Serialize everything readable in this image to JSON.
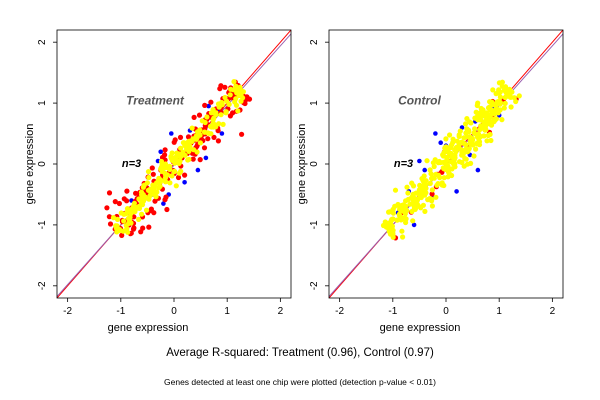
{
  "figure": {
    "summary": "Average R-squared: Treatment (0.96), Control (0.97)",
    "footnote": "Genes detected at least one chip were plotted (detection p-value < 0.01)"
  },
  "colors": {
    "blue": "#0000ff",
    "red": "#ff0000",
    "yellow": "#ffff00",
    "identity_line": "#ff0000",
    "fit_line": "#9a5fb0"
  },
  "chart_data": [
    {
      "type": "scatter",
      "title": "Treatment",
      "annotation": "n=3",
      "xlabel": "gene expression",
      "ylabel": "gene expression",
      "xlim": [
        -2.2,
        2.2
      ],
      "ylim": [
        -2.2,
        2.2
      ],
      "xticks": [
        -2,
        -1,
        0,
        1,
        2
      ],
      "yticks": [
        -2,
        -1,
        0,
        1,
        2
      ],
      "grid": false,
      "reference_lines": [
        {
          "name": "y = x",
          "slope": 1,
          "intercept": 0
        },
        {
          "name": "fit",
          "slope": 0.98,
          "intercept": -0.02
        }
      ],
      "point_cloud": {
        "x_range": [
          -1.1,
          1.25
        ],
        "center": [
          0.1,
          0.1
        ],
        "axis_length": 1.25,
        "half_width": 0.18
      },
      "series": [
        {
          "color": "blue",
          "points": [
            [
              -0.6,
              -0.55
            ],
            [
              -0.3,
              0.05
            ],
            [
              -0.25,
              0.2
            ],
            [
              0.6,
              0.1
            ],
            [
              0.45,
              -0.1
            ],
            [
              -0.1,
              -0.5
            ],
            [
              -0.4,
              -0.5
            ],
            [
              0.3,
              0.55
            ],
            [
              -0.05,
              0.5
            ],
            [
              0.85,
              0.9
            ],
            [
              0.9,
              0.5
            ],
            [
              -0.8,
              -0.6
            ],
            [
              0.2,
              -0.3
            ],
            [
              1.05,
              1.1
            ],
            [
              -0.2,
              -0.65
            ],
            [
              0.65,
              0.95
            ]
          ]
        },
        {
          "color": "red",
          "n": 170,
          "spread": 0.16
        },
        {
          "color": "yellow",
          "n": 210,
          "spread": 0.085
        }
      ]
    },
    {
      "type": "scatter",
      "title": "Control",
      "annotation": "n=3",
      "xlabel": "gene expression",
      "ylabel": "gene expression",
      "xlim": [
        -2.2,
        2.2
      ],
      "ylim": [
        -2.2,
        2.2
      ],
      "xticks": [
        -2,
        -1,
        0,
        1,
        2
      ],
      "yticks": [
        -2,
        -1,
        0,
        1,
        2
      ],
      "grid": false,
      "reference_lines": [
        {
          "name": "y = x",
          "slope": 1,
          "intercept": 0
        },
        {
          "name": "fit",
          "slope": 0.98,
          "intercept": -0.02
        }
      ],
      "point_cloud": {
        "x_range": [
          -1.1,
          1.25
        ],
        "center": [
          0.1,
          0.1
        ],
        "axis_length": 1.25,
        "half_width": 0.2
      },
      "series": [
        {
          "color": "blue",
          "points": [
            [
              -0.2,
              0.5
            ],
            [
              -0.1,
              0.35
            ],
            [
              0.0,
              0.3
            ],
            [
              0.3,
              0.6
            ],
            [
              0.45,
              0.15
            ],
            [
              0.6,
              -0.1
            ],
            [
              -0.4,
              -0.1
            ],
            [
              -0.9,
              -0.8
            ],
            [
              -0.6,
              -1.0
            ],
            [
              0.2,
              -0.45
            ],
            [
              0.9,
              0.95
            ],
            [
              -0.7,
              -0.45
            ],
            [
              0.55,
              0.7
            ],
            [
              -0.25,
              -0.55
            ],
            [
              1.0,
              0.8
            ],
            [
              -0.5,
              0.05
            ]
          ]
        },
        {
          "color": "red",
          "n": 20,
          "spread": 0.12
        },
        {
          "color": "yellow",
          "n": 360,
          "spread": 0.14
        }
      ]
    }
  ]
}
